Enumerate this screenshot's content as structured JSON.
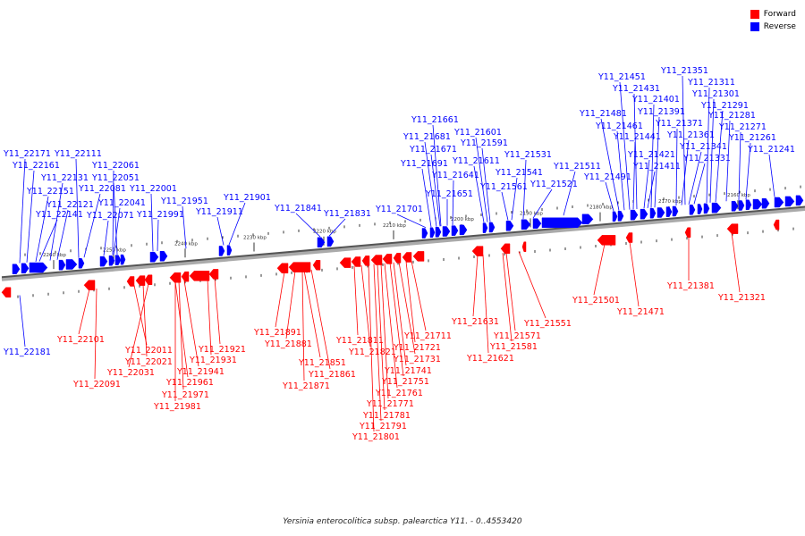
{
  "legend": {
    "forward_label": "Forward",
    "reverse_label": "Reverse",
    "forward_color": "#ff0000",
    "reverse_color": "#0000ff"
  },
  "caption": "Yersinia enterocolitica subsp. palearctica Y11. - 0..4553420",
  "scale_ticks": [
    "2260 kbp",
    "2250 kbp",
    "2240 kbp",
    "2230 kbp",
    "2220 kbp",
    "2210 kbp",
    "2200 kbp",
    "2190 kbp",
    "2180 kbp",
    "2170 kbp",
    "2160 kbp"
  ],
  "reverse_genes": [
    "Y11_22171",
    "Y11_22161",
    "Y11_22151",
    "Y11_22141",
    "Y11_22131",
    "Y11_22121",
    "Y11_22111",
    "Y11_22081",
    "Y11_22071",
    "Y11_22061",
    "Y11_22051",
    "Y11_22041",
    "Y11_22001",
    "Y11_21991",
    "Y11_21951",
    "Y11_21911",
    "Y11_21901",
    "Y11_21841",
    "Y11_21831",
    "Y11_21701",
    "Y11_21691",
    "Y11_21681",
    "Y11_21671",
    "Y11_21661",
    "Y11_21651",
    "Y11_21641",
    "Y11_21611",
    "Y11_21601",
    "Y11_21591",
    "Y11_21561",
    "Y11_21541",
    "Y11_21531",
    "Y11_21521",
    "Y11_21511",
    "Y11_21491",
    "Y11_21481",
    "Y11_21461",
    "Y11_21451",
    "Y11_21441",
    "Y11_21431",
    "Y11_21421",
    "Y11_21411",
    "Y11_21401",
    "Y11_21391",
    "Y11_21371",
    "Y11_21361",
    "Y11_21351",
    "Y11_21341",
    "Y11_21331",
    "Y11_21311",
    "Y11_21301",
    "Y11_21291",
    "Y11_21281",
    "Y11_21271",
    "Y11_21261",
    "Y11_21241",
    "Y11_22181"
  ],
  "forward_genes": [
    "Y11_22101",
    "Y11_22091",
    "Y11_22011",
    "Y11_22021",
    "Y11_22031",
    "Y11_21961",
    "Y11_21941",
    "Y11_21971",
    "Y11_21981",
    "Y11_21921",
    "Y11_21931",
    "Y11_21891",
    "Y11_21881",
    "Y11_21851",
    "Y11_21861",
    "Y11_21871",
    "Y11_21811",
    "Y11_21821",
    "Y11_21801",
    "Y11_21791",
    "Y11_21781",
    "Y11_21771",
    "Y11_21761",
    "Y11_21751",
    "Y11_21741",
    "Y11_21731",
    "Y11_21721",
    "Y11_21711",
    "Y11_21631",
    "Y11_21621",
    "Y11_21571",
    "Y11_21581",
    "Y11_21551",
    "Y11_21501",
    "Y11_21471",
    "Y11_21381",
    "Y11_21321"
  ]
}
